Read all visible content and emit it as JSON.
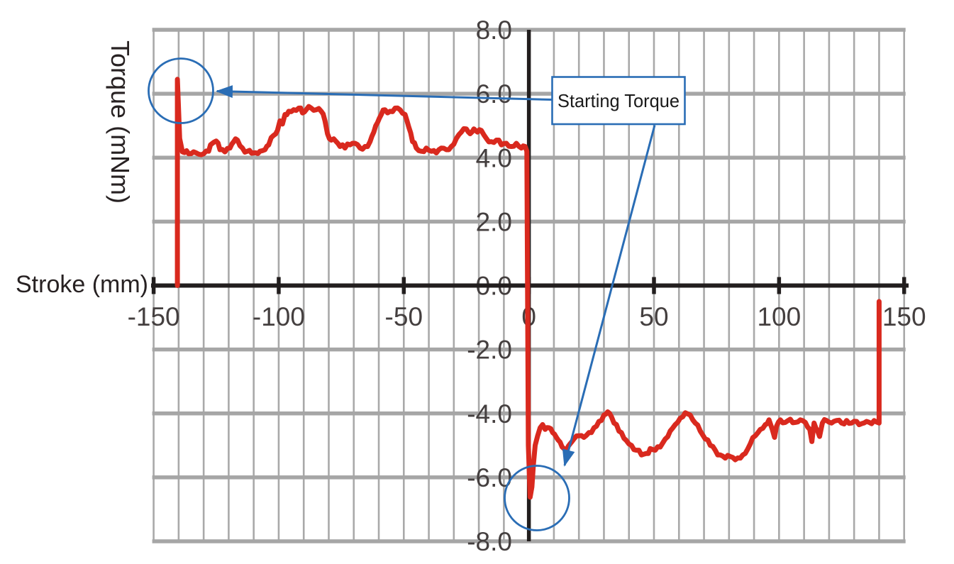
{
  "colors": {
    "background": "#ffffff",
    "trace_red": "#d9291e",
    "annotation_blue": "#2a6db5",
    "grid_thin": "#a9a9a9",
    "grid_thick": "#a6a6a6",
    "axis_black": "#221e1e",
    "tick_label": "#443f3f",
    "title_text": "#272122"
  },
  "chart_data": {
    "type": "line",
    "title": "",
    "xlabel": "Stroke (mm)",
    "ylabel": "Torque (mNm)",
    "xlim": [
      -150,
      150
    ],
    "ylim": [
      -8.0,
      8.0
    ],
    "grid": {
      "vertical_step_mm": 10,
      "horizontal_step_mnm": 2,
      "grid_on": true
    },
    "legend_position": "none",
    "x_ticks": {
      "values": [
        -150,
        -100,
        -50,
        0,
        50,
        100,
        150
      ],
      "labels": [
        "-150",
        "-100",
        "-50",
        "0",
        "50",
        "100",
        "150"
      ]
    },
    "y_ticks": {
      "values": [
        8,
        6,
        4,
        2,
        0,
        -2,
        -4,
        -6,
        -8
      ],
      "labels": [
        "8.0",
        "6.0",
        "4.0",
        "2.0",
        "0.0",
        "-2.0",
        "-4.0",
        "-6.0",
        "-8.0"
      ]
    },
    "annotations": {
      "callout": {
        "text": "Starting Torque"
      },
      "circled_points": [
        {
          "label": "starting torque spike (negative stroke side)",
          "x_mm": -140.5,
          "torque_mnm": 6.45
        },
        {
          "label": "starting torque spike (positive stroke side)",
          "x_mm": 0.5,
          "torque_mnm": -6.6
        }
      ]
    },
    "series": [
      {
        "name": "Torque trace",
        "noise_amplitude_mnm": 0.08,
        "points": [
          [
            -140.5,
            0
          ],
          [
            -140.5,
            6.45
          ],
          [
            -139.6,
            4.6
          ],
          [
            -138.5,
            4.18
          ],
          [
            -136,
            4.12
          ],
          [
            -133,
            4.15
          ],
          [
            -130,
            4.12
          ],
          [
            -128,
            4.2
          ],
          [
            -126.5,
            4.45
          ],
          [
            -125,
            4.52
          ],
          [
            -123.5,
            4.25
          ],
          [
            -121.5,
            4.18
          ],
          [
            -119.5,
            4.3
          ],
          [
            -118,
            4.5
          ],
          [
            -116.5,
            4.55
          ],
          [
            -114.5,
            4.3
          ],
          [
            -112.5,
            4.2
          ],
          [
            -110,
            4.15
          ],
          [
            -107.5,
            4.2
          ],
          [
            -105.5,
            4.25
          ],
          [
            -104,
            4.4
          ],
          [
            -102,
            4.7
          ],
          [
            -100.5,
            4.85
          ],
          [
            -99.5,
            5.15
          ],
          [
            -98.5,
            5.05
          ],
          [
            -97.5,
            5.35
          ],
          [
            -96,
            5.45
          ],
          [
            -94,
            5.5
          ],
          [
            -92,
            5.55
          ],
          [
            -90.5,
            5.4
          ],
          [
            -89,
            5.5
          ],
          [
            -87,
            5.55
          ],
          [
            -85,
            5.5
          ],
          [
            -83,
            5.45
          ],
          [
            -81.5,
            5.15
          ],
          [
            -80.5,
            4.75
          ],
          [
            -79,
            4.55
          ],
          [
            -77,
            4.5
          ],
          [
            -75.5,
            4.35
          ],
          [
            -73.5,
            4.3
          ],
          [
            -71.5,
            4.4
          ],
          [
            -69.5,
            4.45
          ],
          [
            -67.5,
            4.3
          ],
          [
            -65.5,
            4.35
          ],
          [
            -63.5,
            4.5
          ],
          [
            -62,
            4.8
          ],
          [
            -60.5,
            5.1
          ],
          [
            -59,
            5.35
          ],
          [
            -57.5,
            5.5
          ],
          [
            -55.5,
            5.45
          ],
          [
            -53.5,
            5.55
          ],
          [
            -51.5,
            5.5
          ],
          [
            -49.5,
            5.35
          ],
          [
            -48,
            4.95
          ],
          [
            -46.5,
            4.5
          ],
          [
            -45,
            4.3
          ],
          [
            -43,
            4.2
          ],
          [
            -41,
            4.3
          ],
          [
            -39,
            4.2
          ],
          [
            -37,
            4.15
          ],
          [
            -35,
            4.3
          ],
          [
            -33,
            4.25
          ],
          [
            -31,
            4.35
          ],
          [
            -29,
            4.6
          ],
          [
            -27,
            4.8
          ],
          [
            -25,
            4.9
          ],
          [
            -23.5,
            4.75
          ],
          [
            -22,
            4.9
          ],
          [
            -20.5,
            4.8
          ],
          [
            -19,
            4.85
          ],
          [
            -17,
            4.6
          ],
          [
            -15,
            4.5
          ],
          [
            -13,
            4.55
          ],
          [
            -11,
            4.4
          ],
          [
            -9,
            4.45
          ],
          [
            -7,
            4.35
          ],
          [
            -5,
            4.45
          ],
          [
            -3,
            4.3
          ],
          [
            -1.5,
            4.35
          ],
          [
            -0.8,
            4.2
          ],
          [
            -0.2,
            -5.0
          ],
          [
            0.5,
            -6.62
          ],
          [
            1.2,
            -6.3
          ],
          [
            1.8,
            -5.6
          ],
          [
            2.5,
            -5.0
          ],
          [
            3.5,
            -4.7
          ],
          [
            4.5,
            -4.45
          ],
          [
            5.5,
            -4.35
          ],
          [
            6.5,
            -4.5
          ],
          [
            8,
            -4.45
          ],
          [
            9.5,
            -4.6
          ],
          [
            11,
            -4.75
          ],
          [
            12.5,
            -4.9
          ],
          [
            14,
            -5.1
          ],
          [
            15,
            -5.15
          ],
          [
            16.5,
            -4.95
          ],
          [
            18,
            -4.8
          ],
          [
            20,
            -4.7
          ],
          [
            22,
            -4.75
          ],
          [
            24,
            -4.6
          ],
          [
            26,
            -4.45
          ],
          [
            28,
            -4.25
          ],
          [
            30,
            -4.05
          ],
          [
            31.5,
            -3.95
          ],
          [
            33,
            -4.1
          ],
          [
            35,
            -4.35
          ],
          [
            37,
            -4.6
          ],
          [
            39,
            -4.85
          ],
          [
            41,
            -5.0
          ],
          [
            43,
            -5.15
          ],
          [
            45,
            -5.3
          ],
          [
            47,
            -5.25
          ],
          [
            48.5,
            -5.1
          ],
          [
            50.5,
            -5.15
          ],
          [
            52.5,
            -5.05
          ],
          [
            54.5,
            -4.8
          ],
          [
            56.5,
            -4.55
          ],
          [
            58.5,
            -4.35
          ],
          [
            60.5,
            -4.15
          ],
          [
            62.5,
            -3.98
          ],
          [
            64.5,
            -4.05
          ],
          [
            66.5,
            -4.3
          ],
          [
            68.5,
            -4.55
          ],
          [
            70.5,
            -4.8
          ],
          [
            72.5,
            -5.0
          ],
          [
            74.5,
            -5.15
          ],
          [
            76.5,
            -5.3
          ],
          [
            78.5,
            -5.4
          ],
          [
            80.5,
            -5.35
          ],
          [
            82.5,
            -5.45
          ],
          [
            84.5,
            -5.4
          ],
          [
            86.5,
            -5.25
          ],
          [
            88.5,
            -4.95
          ],
          [
            90.5,
            -4.7
          ],
          [
            92.5,
            -4.5
          ],
          [
            94.5,
            -4.35
          ],
          [
            96,
            -4.2
          ],
          [
            97.3,
            -4.5
          ],
          [
            98.2,
            -4.75
          ],
          [
            99,
            -4.4
          ],
          [
            100.5,
            -4.2
          ],
          [
            102.5,
            -4.28
          ],
          [
            104.5,
            -4.18
          ],
          [
            106.5,
            -4.28
          ],
          [
            108.5,
            -4.2
          ],
          [
            110.5,
            -4.28
          ],
          [
            112.3,
            -4.5
          ],
          [
            113.1,
            -4.88
          ],
          [
            114,
            -4.3
          ],
          [
            115.4,
            -4.55
          ],
          [
            116.2,
            -4.72
          ],
          [
            117.3,
            -4.3
          ],
          [
            119,
            -4.22
          ],
          [
            121,
            -4.3
          ],
          [
            123,
            -4.22
          ],
          [
            125,
            -4.3
          ],
          [
            127,
            -4.22
          ],
          [
            129,
            -4.3
          ],
          [
            131,
            -4.25
          ],
          [
            133,
            -4.32
          ],
          [
            135,
            -4.25
          ],
          [
            137,
            -4.32
          ],
          [
            139,
            -4.27
          ],
          [
            140,
            -4.3
          ],
          [
            140,
            -0.5
          ]
        ]
      }
    ]
  }
}
